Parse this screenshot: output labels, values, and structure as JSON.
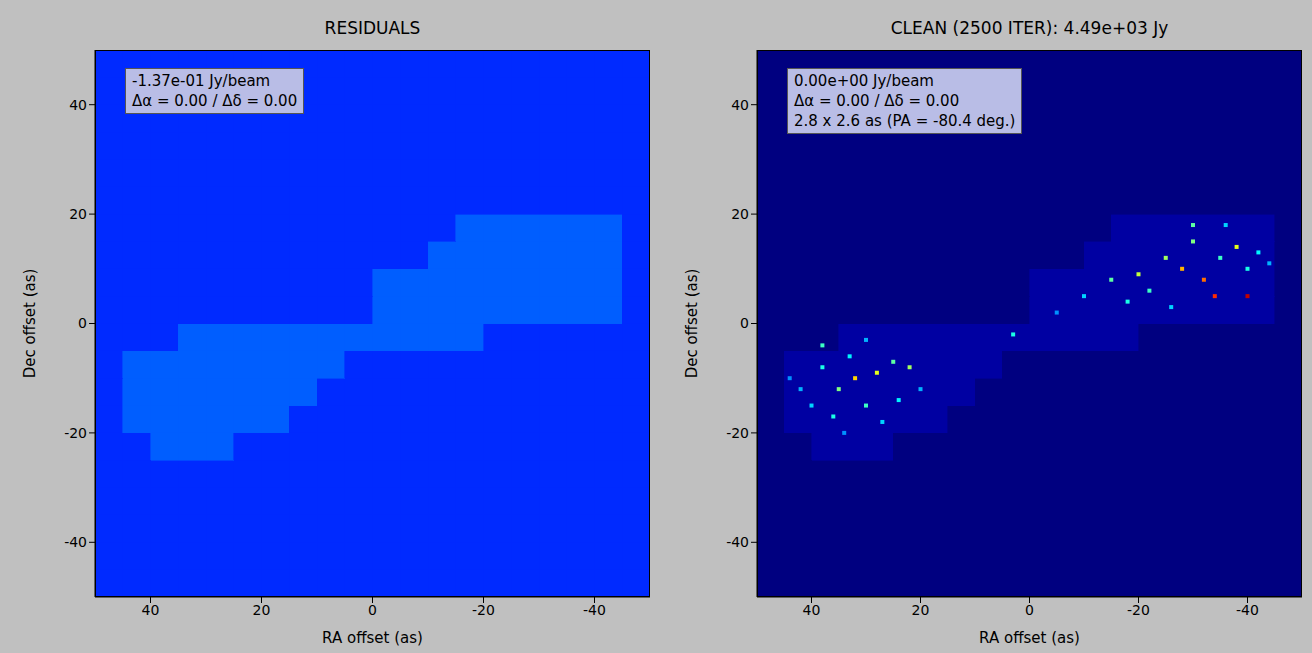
{
  "chart_data": [
    {
      "type": "heatmap",
      "title": "RESIDUALS",
      "x_label": "RA offset (as)",
      "y_label": "Dec offset (as)",
      "xlim": [
        50,
        -50
      ],
      "ylim": [
        -50,
        50
      ],
      "xticks": [
        40,
        20,
        0,
        -20,
        -40
      ],
      "yticks": [
        -40,
        -20,
        0,
        20,
        40
      ],
      "annotations": [
        "-1.37e-01 Jy/beam",
        "Δα =  0.00 / Δδ =  0.00"
      ],
      "clim": [
        -1,
        5
      ],
      "x_edges": [
        50,
        45,
        40,
        35,
        30,
        25,
        20,
        15,
        10,
        5,
        0,
        -5,
        -10,
        -15,
        -20,
        -25,
        -30,
        -35,
        -40,
        -45,
        -50
      ],
      "y_edges": [
        -50,
        -45,
        -40,
        -35,
        -30,
        -25,
        -20,
        -15,
        -10,
        -5,
        0,
        5,
        10,
        15,
        20,
        25,
        30,
        35,
        40,
        45,
        50
      ],
      "cells": [
        [
          0,
          0,
          0,
          0,
          0,
          0,
          0,
          0,
          0,
          0,
          0,
          0,
          0,
          0,
          0,
          0,
          0,
          0,
          0,
          0
        ],
        [
          0,
          0,
          0,
          0,
          0,
          0,
          0,
          0,
          0,
          0,
          0,
          0,
          0,
          0,
          0,
          0,
          0,
          0,
          0,
          0
        ],
        [
          0,
          0,
          0,
          0,
          0,
          0,
          0,
          0,
          0,
          0,
          0,
          0,
          0,
          0,
          0,
          0,
          0,
          0,
          0,
          0
        ],
        [
          0,
          0,
          0,
          0,
          0,
          0,
          0,
          0,
          0,
          0,
          0,
          0,
          0,
          0,
          0,
          0,
          0,
          0,
          0,
          0
        ],
        [
          0,
          0,
          0,
          0,
          0,
          0,
          0,
          0,
          0,
          0,
          0,
          0,
          0,
          0,
          0,
          0,
          0,
          0,
          0,
          0
        ],
        [
          0,
          0,
          0.3,
          0.3,
          0.3,
          0,
          0,
          0,
          0,
          0,
          0,
          0,
          0,
          0,
          0,
          0,
          0,
          0,
          0,
          0
        ],
        [
          0,
          0.3,
          0.3,
          0.3,
          0.3,
          0.3,
          0.3,
          0,
          0,
          0,
          0,
          0,
          0,
          0,
          0,
          0,
          0,
          0,
          0,
          0
        ],
        [
          0,
          0.3,
          0.3,
          0.3,
          0.3,
          0.3,
          0.3,
          0.3,
          0,
          0,
          0,
          0,
          0,
          0,
          0,
          0,
          0,
          0,
          0,
          0
        ],
        [
          0,
          0.3,
          0.3,
          0.3,
          0.3,
          0.3,
          0.3,
          0.3,
          0.3,
          0,
          0,
          0,
          0,
          0,
          0,
          0,
          0,
          0,
          0,
          0
        ],
        [
          0,
          0,
          0,
          0.3,
          0.3,
          0.3,
          0.3,
          0.3,
          0.3,
          0.3,
          0.3,
          0.3,
          0.3,
          0.3,
          0,
          0,
          0,
          0,
          0,
          0
        ],
        [
          0,
          0,
          0,
          0,
          0,
          0,
          0,
          0,
          0,
          0,
          0.3,
          0.3,
          0.3,
          0.3,
          0.3,
          0.3,
          0.3,
          0.3,
          0.3,
          0
        ],
        [
          0,
          0,
          0,
          0,
          0,
          0,
          0,
          0,
          0,
          0,
          0.3,
          0.3,
          0.3,
          0.3,
          0.3,
          0.3,
          0.3,
          0.3,
          0.3,
          0
        ],
        [
          0,
          0,
          0,
          0,
          0,
          0,
          0,
          0,
          0,
          0,
          0,
          0,
          0.3,
          0.3,
          0.3,
          0.3,
          0.3,
          0.3,
          0.3,
          0
        ],
        [
          0,
          0,
          0,
          0,
          0,
          0,
          0,
          0,
          0,
          0,
          0,
          0,
          0,
          0.3,
          0.3,
          0.3,
          0.3,
          0.3,
          0.3,
          0
        ],
        [
          0,
          0,
          0,
          0,
          0,
          0,
          0,
          0,
          0,
          0,
          0,
          0,
          0,
          0,
          0,
          0,
          0,
          0,
          0,
          0
        ],
        [
          0,
          0,
          0,
          0,
          0,
          0,
          0,
          0,
          0,
          0,
          0,
          0,
          0,
          0,
          0,
          0,
          0,
          0,
          0,
          0
        ],
        [
          0,
          0,
          0,
          0,
          0,
          0,
          0,
          0,
          0,
          0,
          0,
          0,
          0,
          0,
          0,
          0,
          0,
          0,
          0,
          0
        ],
        [
          0,
          0,
          0,
          0,
          0,
          0,
          0,
          0,
          0,
          0,
          0,
          0,
          0,
          0,
          0,
          0,
          0,
          0,
          0,
          0
        ],
        [
          0,
          0,
          0,
          0,
          0,
          0,
          0,
          0,
          0,
          0,
          0,
          0,
          0,
          0,
          0,
          0,
          0,
          0,
          0,
          0
        ],
        [
          0,
          0,
          0,
          0,
          0,
          0,
          0,
          0,
          0,
          0,
          0,
          0,
          0,
          0,
          0,
          0,
          0,
          0,
          0,
          0
        ]
      ]
    },
    {
      "type": "heatmap",
      "title": "CLEAN (2500 ITER): 4.49e+03 Jy",
      "x_label": "RA offset (as)",
      "y_label": "Dec offset (as)",
      "xlim": [
        50,
        -50
      ],
      "ylim": [
        -50,
        50
      ],
      "xticks": [
        40,
        20,
        0,
        -20,
        -40
      ],
      "yticks": [
        -40,
        -20,
        0,
        20,
        40
      ],
      "annotations": [
        "0.00e+00 Jy/beam",
        "Δα =  0.00 / Δδ =  0.00",
        "2.8 x 2.6 as (PA = -80.4 deg.)"
      ],
      "clim": [
        0,
        300
      ],
      "x_edges": [
        50,
        45,
        40,
        35,
        30,
        25,
        20,
        15,
        10,
        5,
        0,
        -5,
        -10,
        -15,
        -20,
        -25,
        -30,
        -35,
        -40,
        -45,
        -50
      ],
      "y_edges": [
        -50,
        -45,
        -40,
        -35,
        -30,
        -25,
        -20,
        -15,
        -10,
        -5,
        0,
        5,
        10,
        15,
        20,
        25,
        30,
        35,
        40,
        45,
        50
      ],
      "cells": [
        [
          0,
          0,
          0,
          0,
          0,
          0,
          0,
          0,
          0,
          0,
          0,
          0,
          0,
          0,
          0,
          0,
          0,
          0,
          0,
          0
        ],
        [
          0,
          0,
          0,
          0,
          0,
          0,
          0,
          0,
          0,
          0,
          0,
          0,
          0,
          0,
          0,
          0,
          0,
          0,
          0,
          0
        ],
        [
          0,
          0,
          0,
          0,
          0,
          0,
          0,
          0,
          0,
          0,
          0,
          0,
          0,
          0,
          0,
          0,
          0,
          0,
          0,
          0
        ],
        [
          0,
          0,
          0,
          0,
          0,
          0,
          0,
          0,
          0,
          0,
          0,
          0,
          0,
          0,
          0,
          0,
          0,
          0,
          0,
          0
        ],
        [
          0,
          0,
          0,
          0,
          0,
          0,
          0,
          0,
          0,
          0,
          0,
          0,
          0,
          0,
          0,
          0,
          0,
          0,
          0,
          0
        ],
        [
          0,
          0,
          10,
          10,
          10,
          0,
          0,
          0,
          0,
          0,
          0,
          0,
          0,
          0,
          0,
          0,
          0,
          0,
          0,
          0
        ],
        [
          0,
          10,
          10,
          10,
          10,
          10,
          10,
          0,
          0,
          0,
          0,
          0,
          0,
          0,
          0,
          0,
          0,
          0,
          0,
          0
        ],
        [
          0,
          10,
          10,
          10,
          10,
          10,
          10,
          10,
          0,
          0,
          0,
          0,
          0,
          0,
          0,
          0,
          0,
          0,
          0,
          0
        ],
        [
          0,
          10,
          10,
          10,
          10,
          10,
          10,
          10,
          10,
          0,
          0,
          0,
          0,
          0,
          0,
          0,
          0,
          0,
          0,
          0
        ],
        [
          0,
          0,
          0,
          10,
          10,
          10,
          10,
          10,
          10,
          10,
          10,
          10,
          10,
          10,
          0,
          0,
          0,
          0,
          0,
          0
        ],
        [
          0,
          0,
          0,
          0,
          0,
          0,
          0,
          0,
          0,
          0,
          10,
          10,
          10,
          10,
          10,
          10,
          10,
          10,
          10,
          0
        ],
        [
          0,
          0,
          0,
          0,
          0,
          0,
          0,
          0,
          0,
          0,
          10,
          10,
          10,
          10,
          10,
          10,
          10,
          10,
          10,
          0
        ],
        [
          0,
          0,
          0,
          0,
          0,
          0,
          0,
          0,
          0,
          0,
          0,
          0,
          10,
          10,
          10,
          10,
          10,
          10,
          10,
          0
        ],
        [
          0,
          0,
          0,
          0,
          0,
          0,
          0,
          0,
          0,
          0,
          0,
          0,
          0,
          10,
          10,
          10,
          10,
          10,
          10,
          0
        ],
        [
          0,
          0,
          0,
          0,
          0,
          0,
          0,
          0,
          0,
          0,
          0,
          0,
          0,
          0,
          0,
          0,
          0,
          0,
          0,
          0
        ],
        [
          0,
          0,
          0,
          0,
          0,
          0,
          0,
          0,
          0,
          0,
          0,
          0,
          0,
          0,
          0,
          0,
          0,
          0,
          0,
          0
        ],
        [
          0,
          0,
          0,
          0,
          0,
          0,
          0,
          0,
          0,
          0,
          0,
          0,
          0,
          0,
          0,
          0,
          0,
          0,
          0,
          0
        ],
        [
          0,
          0,
          0,
          0,
          0,
          0,
          0,
          0,
          0,
          0,
          0,
          0,
          0,
          0,
          0,
          0,
          0,
          0,
          0,
          0
        ],
        [
          0,
          0,
          0,
          0,
          0,
          0,
          0,
          0,
          0,
          0,
          0,
          0,
          0,
          0,
          0,
          0,
          0,
          0,
          0,
          0
        ],
        [
          0,
          0,
          0,
          0,
          0,
          0,
          0,
          0,
          0,
          0,
          0,
          0,
          0,
          0,
          0,
          0,
          0,
          0,
          0,
          0
        ]
      ],
      "components": [
        {
          "x": 38,
          "y": -8,
          "value": 120
        },
        {
          "x": 35,
          "y": -12,
          "value": 150
        },
        {
          "x": 33,
          "y": -6,
          "value": 110
        },
        {
          "x": 30,
          "y": -15,
          "value": 130
        },
        {
          "x": 28,
          "y": -9,
          "value": 180
        },
        {
          "x": 25,
          "y": -7,
          "value": 140
        },
        {
          "x": 22,
          "y": -8,
          "value": 160
        },
        {
          "x": 40,
          "y": -15,
          "value": 100
        },
        {
          "x": 42,
          "y": -12,
          "value": 90
        },
        {
          "x": 36,
          "y": -17,
          "value": 120
        },
        {
          "x": 27,
          "y": -18,
          "value": 100
        },
        {
          "x": 32,
          "y": -10,
          "value": 200
        },
        {
          "x": 20,
          "y": -12,
          "value": 90
        },
        {
          "x": 24,
          "y": -14,
          "value": 110
        },
        {
          "x": 38,
          "y": -4,
          "value": 130
        },
        {
          "x": 30,
          "y": -3,
          "value": 90
        },
        {
          "x": 44,
          "y": -10,
          "value": 80
        },
        {
          "x": 34,
          "y": -20,
          "value": 80
        },
        {
          "x": 3,
          "y": -2,
          "value": 120
        },
        {
          "x": -10,
          "y": 5,
          "value": 100
        },
        {
          "x": -15,
          "y": 8,
          "value": 140
        },
        {
          "x": -18,
          "y": 4,
          "value": 120
        },
        {
          "x": -20,
          "y": 9,
          "value": 170
        },
        {
          "x": -22,
          "y": 6,
          "value": 130
        },
        {
          "x": -25,
          "y": 12,
          "value": 160
        },
        {
          "x": -28,
          "y": 10,
          "value": 210
        },
        {
          "x": -30,
          "y": 15,
          "value": 150
        },
        {
          "x": -32,
          "y": 8,
          "value": 230
        },
        {
          "x": -34,
          "y": 5,
          "value": 250
        },
        {
          "x": -35,
          "y": 12,
          "value": 130
        },
        {
          "x": -38,
          "y": 14,
          "value": 180
        },
        {
          "x": -40,
          "y": 10,
          "value": 120
        },
        {
          "x": -40,
          "y": 5,
          "value": 280
        },
        {
          "x": -42,
          "y": 13,
          "value": 110
        },
        {
          "x": -36,
          "y": 18,
          "value": 100
        },
        {
          "x": -30,
          "y": 18,
          "value": 140
        },
        {
          "x": -44,
          "y": 11,
          "value": 90
        },
        {
          "x": -26,
          "y": 3,
          "value": 100
        },
        {
          "x": -5,
          "y": 2,
          "value": 80
        }
      ]
    }
  ]
}
